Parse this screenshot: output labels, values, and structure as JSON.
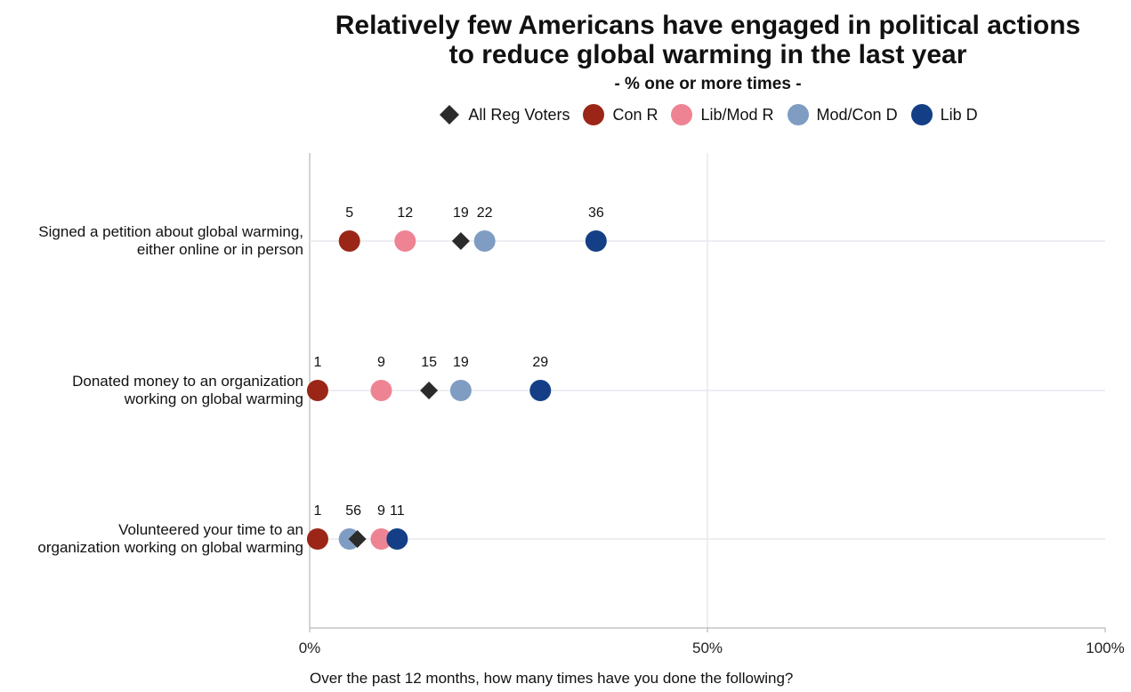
{
  "title_line1": "Relatively few Americans have engaged in political actions",
  "title_line2": "to reduce global warming in the last year",
  "subtitle": "- % one or more times -",
  "caption": "Over the past 12 months, how many times have you done the following?",
  "colors": {
    "All Reg Voters": "#2b2b2b",
    "Con R": "#9b2617",
    "Lib/Mod R": "#ee8493",
    "Mod/Con D": "#7f9cc3",
    "Lib D": "#143f86",
    "grid": "#dddddd",
    "axis": "#aaaaaa"
  },
  "chart_data": {
    "type": "scatter",
    "title": "Relatively few Americans have engaged in political actions to reduce global warming in the last year",
    "subtitle": "- % one or more times -",
    "xlim": [
      0,
      100
    ],
    "x_ticks": [
      "0%",
      "50%",
      "100%"
    ],
    "x_tick_values": [
      0,
      50,
      100
    ],
    "legend_position": "top-center",
    "series_names": [
      "All Reg Voters",
      "Con R",
      "Lib/Mod R",
      "Mod/Con D",
      "Lib D"
    ],
    "categories": [
      {
        "label_lines": [
          "Signed a petition about global warming,",
          "either online or in person"
        ],
        "values": {
          "All Reg Voters": 19,
          "Con R": 5,
          "Lib/Mod R": 12,
          "Mod/Con D": 22,
          "Lib D": 36
        },
        "labels": [
          {
            "text": "5",
            "x": 5
          },
          {
            "text": "12",
            "x": 12
          },
          {
            "text": "19",
            "x": 19
          },
          {
            "text": "22",
            "x": 22
          },
          {
            "text": "36",
            "x": 36
          }
        ]
      },
      {
        "label_lines": [
          "Donated money to an organization",
          "working on global warming"
        ],
        "values": {
          "All Reg Voters": 15,
          "Con R": 1,
          "Lib/Mod R": 9,
          "Mod/Con D": 19,
          "Lib D": 29
        },
        "labels": [
          {
            "text": "1",
            "x": 1
          },
          {
            "text": "9",
            "x": 9
          },
          {
            "text": "15",
            "x": 15
          },
          {
            "text": "19",
            "x": 19
          },
          {
            "text": "29",
            "x": 29
          }
        ]
      },
      {
        "label_lines": [
          "Volunteered your time to an",
          "organization working on global warming"
        ],
        "values": {
          "All Reg Voters": 6,
          "Con R": 1,
          "Lib/Mod R": 9,
          "Mod/Con D": 5,
          "Lib D": 11
        },
        "labels": [
          {
            "text": "1",
            "x": 1
          },
          {
            "text": "5",
            "x": 5
          },
          {
            "text": "6",
            "x": 6
          },
          {
            "text": "9",
            "x": 9
          },
          {
            "text": "11",
            "x": 11
          }
        ]
      }
    ]
  }
}
